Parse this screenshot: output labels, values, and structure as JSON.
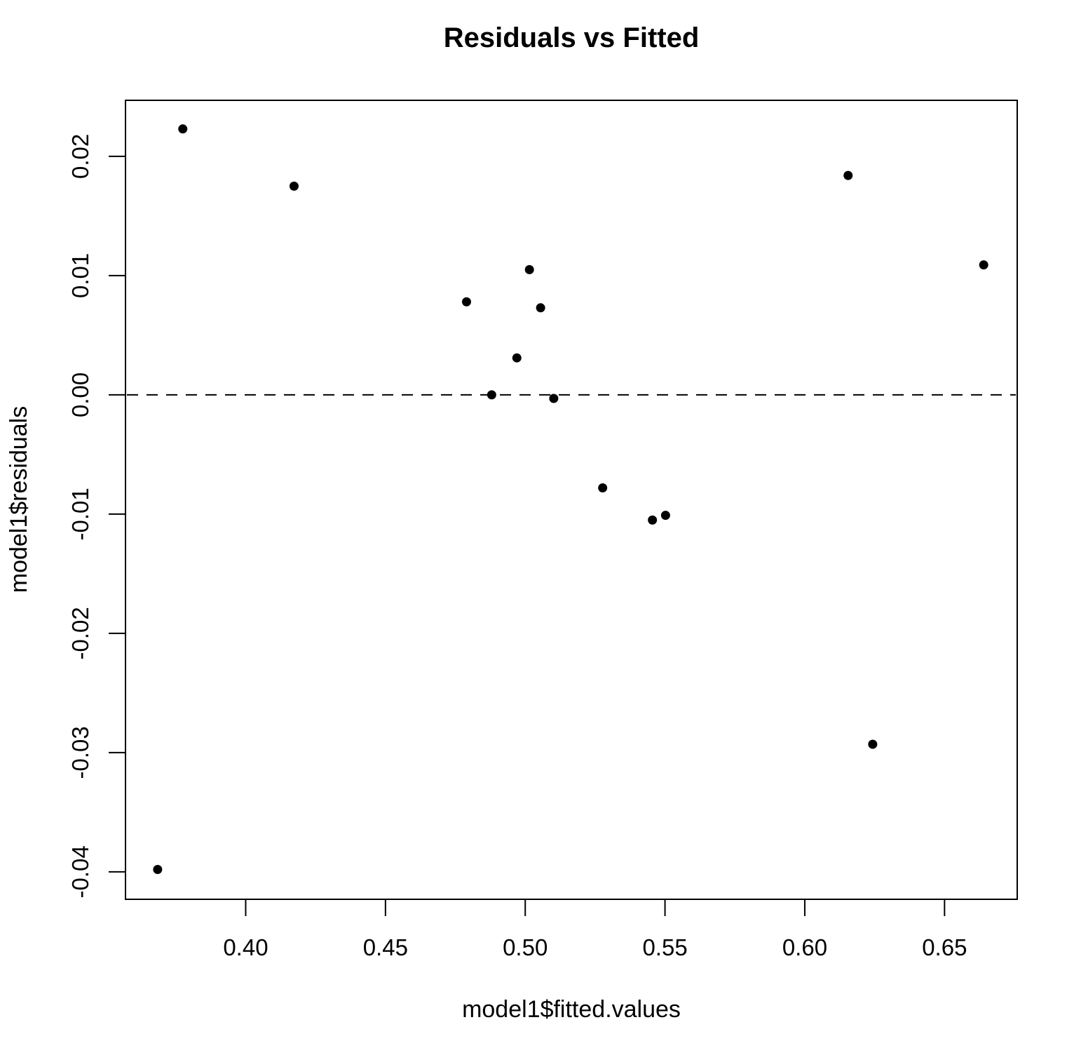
{
  "chart_data": {
    "type": "scatter",
    "title": "Residuals vs Fitted",
    "xlabel": "model1$fitted.values",
    "ylabel": "model1$residuals",
    "xlim": [
      0.357,
      0.676
    ],
    "ylim": [
      -0.0423,
      0.0247
    ],
    "x_ticks": [
      0.4,
      0.45,
      0.5,
      0.55,
      0.6,
      0.65
    ],
    "x_tick_labels": [
      "0.40",
      "0.45",
      "0.50",
      "0.55",
      "0.60",
      "0.65"
    ],
    "y_ticks": [
      0.02,
      0.01,
      0.0,
      -0.01,
      -0.02,
      -0.03,
      -0.04
    ],
    "y_tick_labels": [
      "0.02",
      "0.01",
      "0.00",
      "-0.01",
      "-0.02",
      "-0.03",
      "-0.04"
    ],
    "reference_line": {
      "y": 0,
      "style": "dashed"
    },
    "grid": false,
    "points": [
      {
        "x": 0.3685,
        "y": -0.0398
      },
      {
        "x": 0.3775,
        "y": 0.0223
      },
      {
        "x": 0.4173,
        "y": 0.0175
      },
      {
        "x": 0.479,
        "y": 0.0078
      },
      {
        "x": 0.488,
        "y": 0.0
      },
      {
        "x": 0.497,
        "y": 0.0031
      },
      {
        "x": 0.5015,
        "y": 0.0105
      },
      {
        "x": 0.5055,
        "y": 0.0073
      },
      {
        "x": 0.5102,
        "y": -0.0003
      },
      {
        "x": 0.5277,
        "y": -0.0078
      },
      {
        "x": 0.5455,
        "y": -0.0105
      },
      {
        "x": 0.5502,
        "y": -0.0101
      },
      {
        "x": 0.6155,
        "y": 0.0184
      },
      {
        "x": 0.6243,
        "y": -0.0293
      },
      {
        "x": 0.664,
        "y": 0.0109
      }
    ]
  }
}
